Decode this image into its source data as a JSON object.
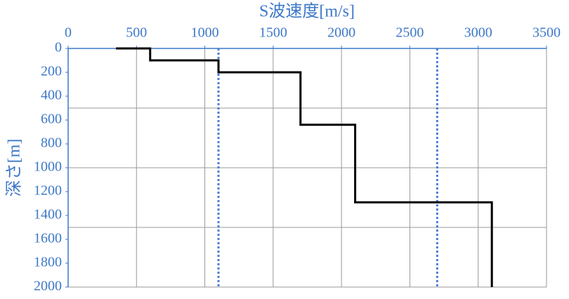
{
  "chart_data": {
    "type": "line",
    "xlabel": "S波速度[m/s]",
    "ylabel": "深さ[m]",
    "x": [
      350,
      600,
      600,
      1100,
      1100,
      1700,
      1700,
      2100,
      2100,
      3100,
      3100
    ],
    "series": [
      {
        "color": "#000000",
        "values": [
          0,
          0,
          100,
          100,
          200,
          200,
          640,
          640,
          1290,
          1290,
          2000
        ]
      }
    ],
    "reference_lines": {
      "x": [
        1100,
        2700
      ],
      "color": "#4a7fd0",
      "style": "dotted"
    },
    "xlim": [
      0,
      3500
    ],
    "xticks": [
      0,
      500,
      1000,
      1500,
      2000,
      2500,
      3000,
      3500
    ],
    "ylim": [
      0,
      2000
    ],
    "yticks": [
      0,
      200,
      400,
      600,
      800,
      1000,
      1200,
      1400,
      1600,
      1800,
      2000
    ],
    "y_inverted": true,
    "x_axis_position": "top",
    "ygrid": [
      500,
      1000,
      1500,
      2000
    ],
    "grid": true
  }
}
